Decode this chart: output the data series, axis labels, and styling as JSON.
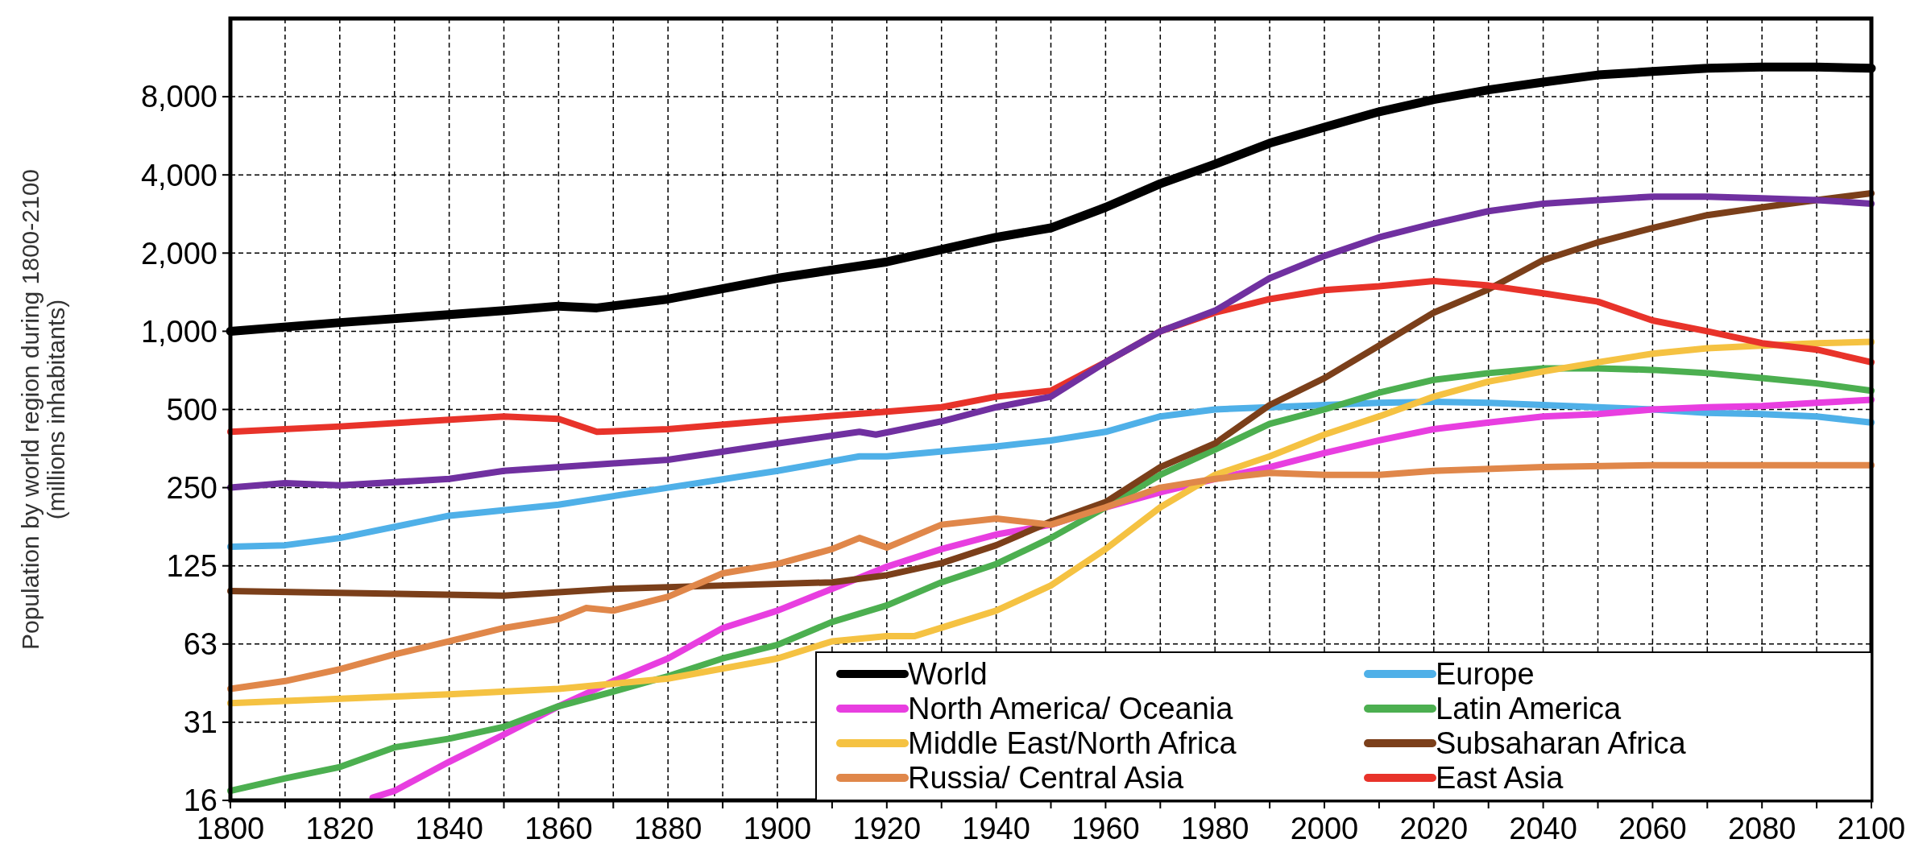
{
  "chart_data": {
    "type": "line",
    "ylabel": "Population by world region during 1800-2100\n(millions inhabitants)",
    "log": true,
    "grid": true,
    "line_style": "solid",
    "marker": "none",
    "legend": "bottom right",
    "xlim": [
      1800,
      2100
    ],
    "xticks": [
      1800,
      {
        "value": 1810,
        "label": null
      },
      1820,
      {
        "value": 1830,
        "label": null
      },
      1840,
      {
        "value": 1850,
        "label": null
      },
      1860,
      {
        "value": 1870,
        "label": null
      },
      1880,
      {
        "value": 1890,
        "label": null
      },
      1900,
      {
        "value": 1910,
        "label": null
      },
      1920,
      {
        "value": 1930,
        "label": null
      },
      1940,
      {
        "value": 1950,
        "label": null
      },
      1960,
      {
        "value": 1970,
        "label": null
      },
      1980,
      {
        "value": 1990,
        "label": null
      },
      2000,
      {
        "value": 2010,
        "label": null
      },
      2020,
      {
        "value": 2030,
        "label": null
      },
      2040,
      {
        "value": 2050,
        "label": null
      },
      2060,
      {
        "value": 2070,
        "label": null
      },
      2080,
      {
        "value": 2090,
        "label": null
      },
      2100
    ],
    "ylim": [
      15.625,
      16000
    ],
    "yticks": [
      {
        "value": 15.625,
        "label": "16"
      },
      {
        "value": 31.25,
        "label": "31"
      },
      {
        "value": 62.5,
        "label": "63"
      },
      125,
      250,
      500,
      {
        "value": 1000,
        "label": "1,000"
      },
      {
        "value": 2000,
        "label": "2,000"
      },
      {
        "value": 4000,
        "label": "4,000"
      },
      {
        "value": 8000,
        "label": "8,000"
      }
    ],
    "series": [
      {
        "name": "World",
        "color": "#000000",
        "x": [
          1800,
          1820,
          1850,
          1860,
          1867,
          1880,
          1900,
          1920,
          1940,
          1950,
          1960,
          1970,
          1980,
          1990,
          2000,
          2010,
          2020,
          2030,
          2040,
          2050,
          2060,
          2070,
          2080,
          2090,
          2100
        ],
        "values": [
          1000,
          1080,
          1200,
          1250,
          1230,
          1330,
          1600,
          1850,
          2300,
          2500,
          3000,
          3700,
          4400,
          5300,
          6100,
          7000,
          7800,
          8500,
          9100,
          9700,
          10000,
          10300,
          10400,
          10400,
          10300
        ]
      },
      {
        "name": "Europe",
        "color": "#4fb0e8",
        "x": [
          1800,
          1810,
          1820,
          1840,
          1860,
          1880,
          1900,
          1915,
          1920,
          1940,
          1950,
          1960,
          1970,
          1980,
          1990,
          2000,
          2010,
          2020,
          2030,
          2040,
          2050,
          2060,
          2070,
          2080,
          2090,
          2100
        ],
        "values": [
          148,
          150,
          160,
          195,
          215,
          250,
          290,
          330,
          330,
          360,
          380,
          410,
          470,
          500,
          510,
          520,
          530,
          535,
          530,
          520,
          510,
          500,
          485,
          480,
          470,
          445
        ]
      },
      {
        "name": "North America/ Oceania",
        "color": "#e83ee0",
        "x": [
          1826,
          1830,
          1840,
          1850,
          1860,
          1870,
          1880,
          1890,
          1900,
          1910,
          1920,
          1930,
          1940,
          1950,
          1960,
          1970,
          1980,
          1990,
          2000,
          2010,
          2020,
          2030,
          2040,
          2050,
          2060,
          2070,
          2080,
          2090,
          2100
        ],
        "values": [
          16,
          17,
          22,
          28,
          36,
          45,
          55,
          72,
          84,
          102,
          124,
          145,
          165,
          180,
          210,
          240,
          270,
          300,
          340,
          380,
          420,
          445,
          470,
          480,
          500,
          510,
          515,
          530,
          545
        ]
      },
      {
        "name": "Latin America",
        "color": "#4caf50",
        "x": [
          1800,
          1810,
          1820,
          1830,
          1840,
          1850,
          1860,
          1870,
          1880,
          1890,
          1900,
          1910,
          1920,
          1930,
          1940,
          1950,
          1960,
          1970,
          1980,
          1990,
          2000,
          2010,
          2020,
          2030,
          2040,
          2050,
          2060,
          2070,
          2080,
          2090,
          2100
        ],
        "values": [
          17,
          19,
          21,
          25,
          27,
          30,
          36,
          41,
          47,
          55,
          62,
          76,
          88,
          108,
          127,
          160,
          210,
          280,
          350,
          440,
          500,
          580,
          650,
          690,
          720,
          720,
          710,
          690,
          660,
          630,
          590
        ]
      },
      {
        "name": "Middle East/North Africa",
        "color": "#f5c242",
        "x": [
          1800,
          1840,
          1860,
          1880,
          1900,
          1910,
          1920,
          1925,
          1940,
          1950,
          1960,
          1970,
          1980,
          1990,
          2000,
          2010,
          2020,
          2030,
          2040,
          2050,
          2060,
          2070,
          2080,
          2090,
          2100
        ],
        "values": [
          37,
          40,
          42,
          46,
          55,
          64,
          67,
          67,
          84,
          105,
          145,
          210,
          280,
          330,
          400,
          470,
          560,
          640,
          700,
          760,
          820,
          860,
          880,
          900,
          910
        ]
      },
      {
        "name": "Subsaharan Africa",
        "color": "#7b3f1a",
        "x": [
          1800,
          1850,
          1870,
          1890,
          1910,
          1920,
          1930,
          1940,
          1950,
          1960,
          1970,
          1980,
          1990,
          2000,
          2010,
          2020,
          2030,
          2040,
          2050,
          2060,
          2070,
          2080,
          2090,
          2100
        ],
        "values": [
          100,
          96,
          102,
          105,
          108,
          115,
          128,
          150,
          185,
          220,
          300,
          370,
          520,
          660,
          880,
          1180,
          1450,
          1880,
          2200,
          2500,
          2800,
          3000,
          3200,
          3400
        ]
      },
      {
        "name": "Russia/ Central Asia",
        "color": "#e0874a",
        "x": [
          1800,
          1810,
          1820,
          1830,
          1840,
          1850,
          1860,
          1865,
          1870,
          1880,
          1890,
          1900,
          1910,
          1915,
          1920,
          1930,
          1940,
          1950,
          1960,
          1970,
          1980,
          1990,
          2000,
          2010,
          2020,
          2040,
          2060,
          2100
        ],
        "values": [
          42,
          45,
          50,
          57,
          64,
          72,
          78,
          86,
          84,
          95,
          117,
          127,
          145,
          160,
          147,
          180,
          190,
          180,
          210,
          250,
          270,
          285,
          280,
          280,
          290,
          300,
          305,
          305
        ]
      },
      {
        "name": "East Asia",
        "color": "#e8332a",
        "x": [
          1800,
          1820,
          1850,
          1860,
          1867,
          1880,
          1900,
          1920,
          1930,
          1940,
          1950,
          1960,
          1970,
          1980,
          1990,
          2000,
          2010,
          2020,
          2030,
          2040,
          2050,
          2060,
          2070,
          2080,
          2090,
          2100
        ],
        "values": [
          410,
          430,
          470,
          460,
          410,
          420,
          455,
          490,
          510,
          560,
          590,
          760,
          1000,
          1180,
          1330,
          1440,
          1490,
          1560,
          1500,
          1400,
          1300,
          1100,
          1000,
          900,
          850,
          760
        ]
      },
      {
        "color": "#7030a0",
        "x": [
          1800,
          1810,
          1820,
          1840,
          1850,
          1870,
          1880,
          1900,
          1915,
          1918,
          1930,
          1940,
          1950,
          1960,
          1970,
          1980,
          1990,
          2000,
          2010,
          2020,
          2030,
          2040,
          2050,
          2060,
          2070,
          2080,
          2090,
          2100
        ],
        "values": [
          250,
          260,
          255,
          270,
          290,
          310,
          320,
          370,
          410,
          400,
          450,
          510,
          560,
          760,
          1000,
          1200,
          1600,
          1950,
          2300,
          2600,
          2900,
          3100,
          3200,
          3300,
          3300,
          3250,
          3200,
          3100
        ]
      }
    ]
  }
}
